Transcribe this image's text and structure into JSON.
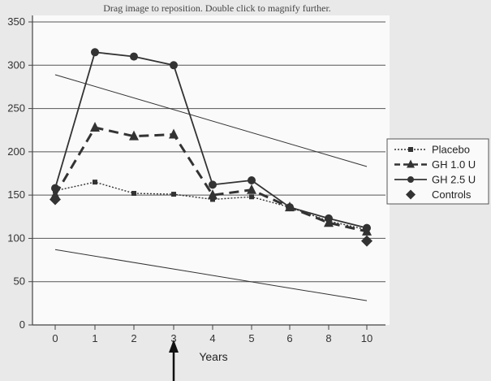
{
  "viewer": {
    "notice": "Drag image to reposition. Double click to magnify further."
  },
  "chart_data": {
    "type": "line",
    "title": "",
    "xlabel": "Years",
    "ylabel": "",
    "ylim": [
      0,
      350
    ],
    "yticks": [
      0,
      50,
      100,
      150,
      200,
      250,
      300,
      350
    ],
    "categories": [
      "0",
      "1",
      "2",
      "3",
      "4",
      "5",
      "6",
      "8",
      "10"
    ],
    "grid": true,
    "legend_position": "right",
    "series": [
      {
        "name": "Placebo",
        "style": "dotted",
        "marker": "square",
        "values": [
          155,
          165,
          152,
          151,
          145,
          148,
          136,
          120,
          110
        ]
      },
      {
        "name": "GH 1.0 U",
        "style": "dashed",
        "marker": "triangle",
        "values": [
          150,
          228,
          218,
          220,
          150,
          156,
          136,
          118,
          108
        ]
      },
      {
        "name": "GH 2.5 U",
        "style": "solid",
        "marker": "circle",
        "values": [
          158,
          315,
          310,
          300,
          162,
          167,
          136,
          123,
          112
        ]
      },
      {
        "name": "Controls",
        "style": "none",
        "marker": "diamond",
        "values": [
          145,
          null,
          null,
          null,
          null,
          null,
          null,
          null,
          97
        ]
      }
    ],
    "annotations": [
      {
        "type": "trend-line",
        "from": [
          0,
          289
        ],
        "to": [
          10,
          183
        ]
      },
      {
        "type": "trend-line",
        "from": [
          0,
          87
        ],
        "to": [
          10,
          28
        ]
      },
      {
        "type": "arrow",
        "at_category": "3",
        "direction": "up"
      }
    ]
  }
}
